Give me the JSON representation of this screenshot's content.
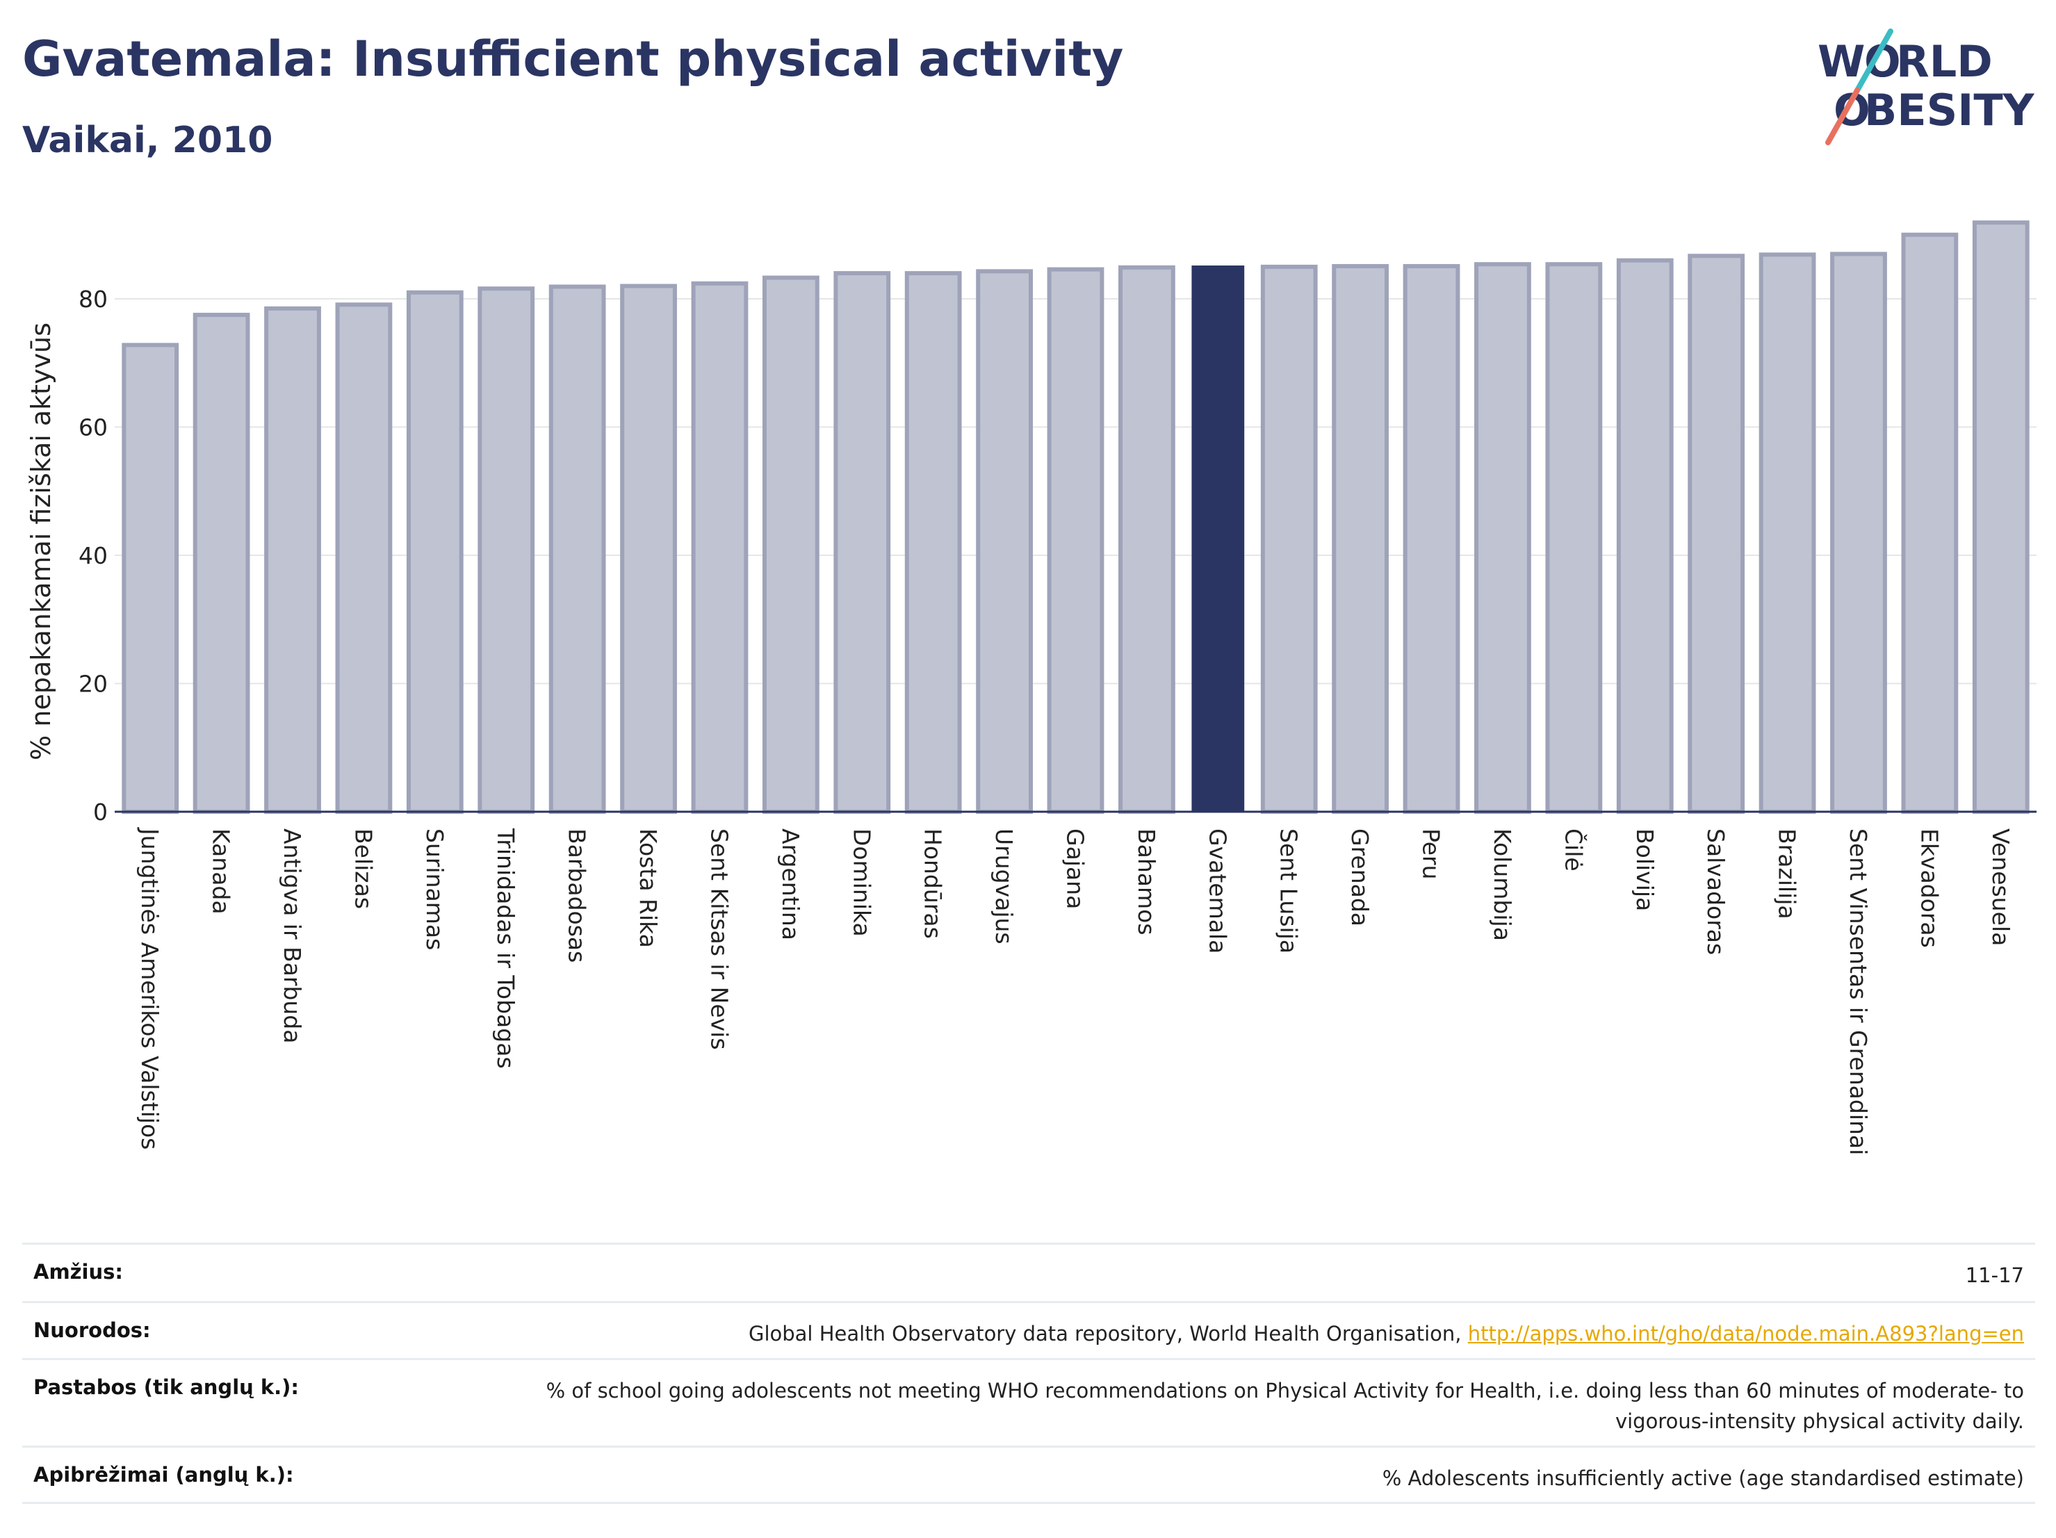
{
  "header": {
    "title": "Gvatemala: Insufficient physical activity",
    "subtitle": "Vaikai, 2010",
    "logo_top": "W RLD",
    "logo_bottom": "BESITY"
  },
  "colors": {
    "title": "#2b3563",
    "bar_default": "#c0c3d1",
    "bar_default_border": "#9ea3b9",
    "bar_highlight": "#2b3563",
    "link": "#e6a800",
    "logo_teal": "#3cbcc4",
    "logo_coral": "#e8705f"
  },
  "chart_data": {
    "type": "bar",
    "ylabel": "% nepakankamai fiziškai aktyvūs",
    "ylim": [
      0,
      93
    ],
    "yticks": [
      0,
      20,
      40,
      60,
      80
    ],
    "grid": true,
    "highlight": "Gvatemala",
    "categories": [
      "Jungtinės Amerikos Valstijos",
      "Kanada",
      "Antigva ir Barbuda",
      "Belizas",
      "Surinamas",
      "Trinidadas ir Tobagas",
      "Barbadosas",
      "Kosta Rika",
      "Sent Kitsas ir Nevis",
      "Argentina",
      "Dominika",
      "Hondūras",
      "Urugvajus",
      "Gajana",
      "Bahamos",
      "Gvatemala",
      "Sent Lusija",
      "Grenada",
      "Peru",
      "Kolumbija",
      "Čilė",
      "Bolivija",
      "Salvadoras",
      "Brazilija",
      "Sent Vinsentas ir Grenadinai",
      "Ekvadoras",
      "Venesuela"
    ],
    "values": [
      72.8,
      77.5,
      78.5,
      79.1,
      81.0,
      81.6,
      81.9,
      82.0,
      82.4,
      83.3,
      84.0,
      84.0,
      84.3,
      84.6,
      84.9,
      85.2,
      85.0,
      85.1,
      85.1,
      85.4,
      85.4,
      86.0,
      86.7,
      86.9,
      87.0,
      90.0,
      91.9
    ]
  },
  "meta": [
    {
      "key": "Amžius:",
      "value": "11-17"
    },
    {
      "key": "Nuorodos:",
      "value": "Global Health Observatory data repository, World Health Organisation,",
      "link": "http://apps.who.int/gho/data/node.main.A893?lang=en"
    },
    {
      "key": "Pastabos (tik anglų k.):",
      "value": "% of school going adolescents not meeting WHO recommendations on Physical Activity for Health, i.e. doing less than 60 minutes of moderate- to vigorous-intensity physical activity daily."
    },
    {
      "key": "Apibrėžimai (anglų k.):",
      "value": "% Adolescents insufficiently active (age standardised estimate)"
    }
  ]
}
